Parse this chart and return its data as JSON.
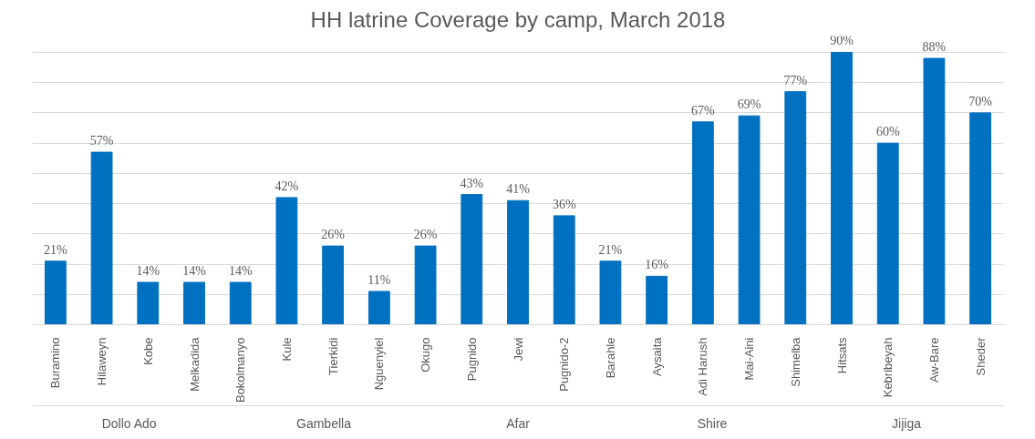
{
  "chart_data": {
    "type": "bar",
    "title": "HH latrine Coverage by camp, March 2018",
    "categories": [
      "Buramino",
      "Hilaweyn",
      "Kobe",
      "Melkadida",
      "Bokolmanyo",
      "Kule",
      "Tierkidi",
      "Nguenyiel",
      "Okugo",
      "Pugnido",
      "Jewi",
      "Pugnido-2",
      "Barahle",
      "Aysaita",
      "Adi Harush",
      "Mai-Aini",
      "Shimelba",
      "Hitsats",
      "Kebribeyah",
      "Aw-Bare",
      "Sheder"
    ],
    "values": [
      21,
      57,
      14,
      14,
      14,
      42,
      26,
      11,
      26,
      43,
      41,
      36,
      21,
      16,
      67,
      69,
      77,
      90,
      60,
      88,
      70
    ],
    "value_labels": [
      "21%",
      "57%",
      "14%",
      "14%",
      "14%",
      "42%",
      "26%",
      "11%",
      "26%",
      "43%",
      "41%",
      "36%",
      "21%",
      "16%",
      "67%",
      "69%",
      "77%",
      "90%",
      "60%",
      "88%",
      "70%"
    ],
    "color": "#0070c0",
    "tick_labels": "x",
    "grid": "y",
    "annotations": [
      "Dollo Ado",
      "Gambella",
      "Afar",
      "Shire",
      "Jijiga"
    ]
  }
}
